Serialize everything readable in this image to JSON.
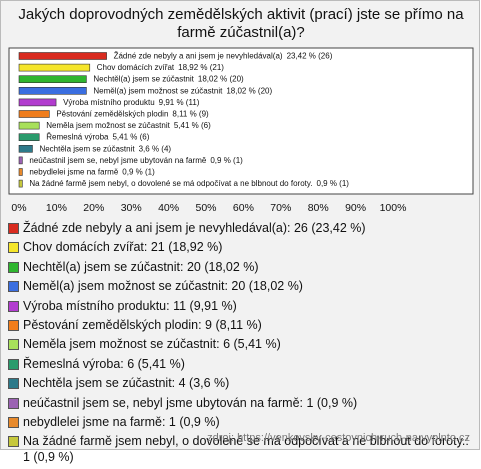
{
  "chart_data": {
    "type": "bar",
    "orientation": "horizontal",
    "title": "Jakých doprovodných zemědělských aktivit (prací) jste se přímo na farmě zúčastnil(a)?",
    "categories": [
      "Žádné zde nebyly a ani jsem je nevyhledával(a)",
      "Chov domácích zvířat",
      "Nechtěl(a) jsem se zúčastnit",
      "Neměl(a) jsem možnost se zúčastnit",
      "Výroba místního produktu",
      "Pěstování zemědělských plodin",
      "Neměla jsem možnost se zúčastnit",
      "Řemeslná výroba",
      "Nechtěla jsem se zúčastnit",
      "neúčastnil jsem se, nebyl jsme ubytován na farmě",
      "nebydlelei jsme na farmě",
      "Na žádné farmě jsem nebyl,  o dovolené se má odpočívat  a ne  blbnout  do foroty."
    ],
    "values": [
      23.42,
      18.92,
      18.02,
      18.02,
      9.91,
      8.11,
      5.41,
      5.41,
      3.6,
      0.9,
      0.9,
      0.9
    ],
    "value_labels": [
      "23,42 % (26)",
      "18,92 % (21)",
      "18,02 % (20)",
      "18,02 % (20)",
      "9,91 % (11)",
      "8,11 % (9)",
      "5,41 % (6)",
      "5,41 % (6)",
      "3,6 % (4)",
      "0,9 % (1)",
      "0,9 % (1)",
      "0,9 % (1)"
    ],
    "colors": [
      "#d92b1f",
      "#f5e52a",
      "#2fb52f",
      "#3a6ee0",
      "#b23ccf",
      "#f07d1c",
      "#a8e05a",
      "#2a9b6c",
      "#2d7a8a",
      "#9b62b3",
      "#e88a2c",
      "#c6c83c"
    ],
    "legend_labels": [
      "Žádné zde nebyly a ani jsem je nevyhledával(a): 26 (23,42 %)",
      "Chov domácích zvířat: 21 (18,92 %)",
      "Nechtěl(a) jsem se zúčastnit: 20 (18,02 %)",
      "Neměl(a) jsem možnost se zúčastnit: 20 (18,02 %)",
      "Výroba místního produktu: 11 (9,91 %)",
      "Pěstování zemědělských plodin: 9 (8,11 %)",
      "Neměla jsem možnost se zúčastnit: 6 (5,41 %)",
      "Řemeslná výroba: 6 (5,41 %)",
      "Nechtěla jsem se zúčastnit: 4 (3,6 %)",
      "neúčastnil jsem se, nebyl jsme ubytován na farmě: 1 (0,9 %)",
      "nebydlelei jsme na farmě: 1 (0,9 %)",
      "Na žádné farmě jsem nebyl,  o dovolené se má odpočívat  a ne  blbnout  do foroty.: 1 (0,9 %)"
    ],
    "xlim": [
      0,
      100
    ],
    "xticks": [
      {
        "value": 0,
        "label": "0%"
      },
      {
        "value": 10,
        "label": "10%"
      },
      {
        "value": 20,
        "label": "20%"
      },
      {
        "value": 30,
        "label": "30%"
      },
      {
        "value": 40,
        "label": "40%"
      },
      {
        "value": 50,
        "label": "50%"
      },
      {
        "value": 60,
        "label": "60%"
      },
      {
        "value": 70,
        "label": "70%"
      },
      {
        "value": 80,
        "label": "80%"
      },
      {
        "value": 90,
        "label": "90%"
      },
      {
        "value": 100,
        "label": "100%"
      }
    ],
    "grid": false,
    "source": "zdroj: https://venkovsky-cestovnich-ruch-na.vyplnto.cz"
  }
}
